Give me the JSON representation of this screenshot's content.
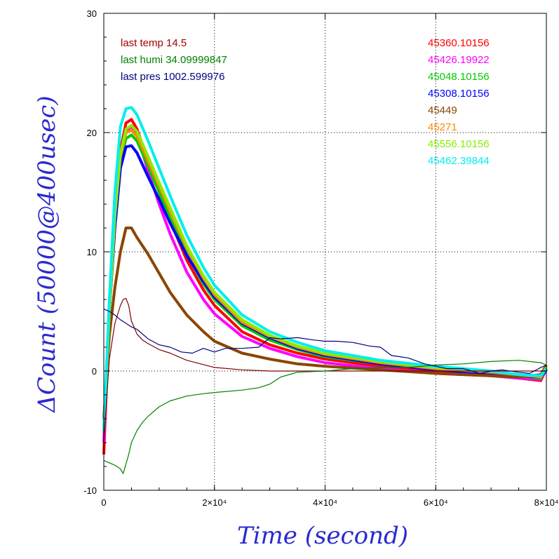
{
  "chart_data": {
    "type": "line",
    "xlabel": "Time (second)",
    "ylabel": "ΔCount (50000@400usec)",
    "xlim": [
      0,
      80000
    ],
    "ylim": [
      -10,
      30
    ],
    "grid": true,
    "x_tick_labels": [
      "0",
      "2×10⁴",
      "4×10⁴",
      "6×10⁴",
      "8×10⁴"
    ],
    "x_tick_values": [
      0,
      20000,
      40000,
      60000,
      80000
    ],
    "y_tick_labels": [
      "-10",
      "0",
      "10",
      "20",
      "30"
    ],
    "y_tick_values": [
      -10,
      0,
      10,
      20,
      30
    ],
    "env_annotations": [
      {
        "text": "last temp 14.5",
        "color": "#a00000"
      },
      {
        "text": "last humi 34.09999847",
        "color": "#008000"
      },
      {
        "text": "last pres 1002.599976",
        "color": "#000080"
      }
    ],
    "legend_position": "top-right",
    "series": [
      {
        "name": "45360.10156",
        "color": "#ff0000",
        "width": 4,
        "x": [
          0,
          1000,
          2000,
          3000,
          4000,
          5000,
          6000,
          8000,
          10000,
          12000,
          15000,
          18000,
          20000,
          25000,
          30000,
          35000,
          40000,
          50000,
          60000,
          70000,
          75000,
          79000,
          80000
        ],
        "y": [
          -7,
          5,
          13,
          18.5,
          20.8,
          21.1,
          20.3,
          17.6,
          15,
          12.6,
          9.3,
          6.8,
          5.5,
          3.3,
          2.2,
          1.5,
          1.0,
          0.4,
          0,
          -0.3,
          -0.6,
          -0.8,
          0.2
        ]
      },
      {
        "name": "45426.19922",
        "color": "#ff00ff",
        "width": 4,
        "x": [
          0,
          1000,
          2000,
          3000,
          4000,
          5000,
          6000,
          8000,
          10000,
          12000,
          15000,
          18000,
          20000,
          25000,
          30000,
          35000,
          40000,
          50000,
          60000,
          70000,
          75000,
          79000,
          80000
        ],
        "y": [
          -6,
          5,
          13,
          18,
          20.2,
          20.5,
          19.8,
          16.8,
          14,
          11.5,
          8.3,
          6.0,
          4.8,
          2.9,
          1.9,
          1.2,
          0.7,
          0.2,
          -0.2,
          -0.4,
          -0.6,
          -0.7,
          0.1
        ]
      },
      {
        "name": "45048.10156",
        "color": "#00cc00",
        "width": 4,
        "x": [
          0,
          1000,
          2000,
          3000,
          4000,
          5000,
          6000,
          8000,
          10000,
          12000,
          15000,
          18000,
          20000,
          25000,
          30000,
          35000,
          40000,
          50000,
          60000,
          70000,
          75000,
          79000,
          80000
        ],
        "y": [
          -5,
          5,
          12.5,
          17.5,
          19.5,
          19.8,
          19.3,
          17.2,
          15,
          12.8,
          9.8,
          7.3,
          6.0,
          3.8,
          2.6,
          1.8,
          1.2,
          0.6,
          0.1,
          -0.2,
          -0.4,
          -0.6,
          0.2
        ]
      },
      {
        "name": "45308.10156",
        "color": "#0000ff",
        "width": 4,
        "x": [
          0,
          1000,
          2000,
          3000,
          4000,
          5000,
          6000,
          8000,
          10000,
          12000,
          15000,
          18000,
          20000,
          25000,
          30000,
          35000,
          40000,
          50000,
          60000,
          70000,
          75000,
          79000,
          80000
        ],
        "y": [
          -5,
          5,
          12,
          17,
          18.8,
          18.9,
          18.3,
          16.3,
          14.4,
          12.4,
          9.7,
          7.5,
          6.2,
          4.0,
          2.8,
          1.9,
          1.3,
          0.6,
          0.1,
          -0.2,
          -0.4,
          -0.5,
          0.1
        ]
      },
      {
        "name": "45449",
        "color": "#8b4500",
        "width": 4,
        "x": [
          0,
          1000,
          2000,
          3000,
          4000,
          5000,
          6000,
          7000,
          8000,
          10000,
          12000,
          15000,
          18000,
          20000,
          25000,
          30000,
          35000,
          40000,
          50000,
          60000,
          70000,
          75000,
          79000,
          80000
        ],
        "y": [
          -4,
          3,
          7,
          10,
          12,
          12,
          11.2,
          10.5,
          9.8,
          8.2,
          6.6,
          4.7,
          3.3,
          2.5,
          1.5,
          1.0,
          0.6,
          0.4,
          0.1,
          -0.2,
          -0.4,
          -0.5,
          -0.3,
          0.5
        ]
      },
      {
        "name": "45271",
        "color": "#ff8800",
        "width": 4,
        "x": [
          0,
          1000,
          2000,
          3000,
          4000,
          5000,
          6000,
          8000,
          10000,
          12000,
          15000,
          18000,
          20000,
          25000,
          30000,
          35000,
          40000,
          50000,
          60000,
          70000,
          75000,
          79000,
          80000
        ],
        "y": [
          -5,
          5,
          13,
          18,
          20,
          20.2,
          19.7,
          17.6,
          15.5,
          13.4,
          10.3,
          7.8,
          6.4,
          4.1,
          2.9,
          2.0,
          1.4,
          0.7,
          0.2,
          -0.1,
          -0.3,
          -0.5,
          0.3
        ]
      },
      {
        "name": "45556.10156",
        "color": "#88ee00",
        "width": 4,
        "x": [
          0,
          1000,
          2000,
          3000,
          4000,
          5000,
          6000,
          8000,
          10000,
          12000,
          15000,
          18000,
          20000,
          25000,
          30000,
          35000,
          40000,
          50000,
          60000,
          70000,
          75000,
          79000,
          80000
        ],
        "y": [
          -5,
          5,
          13,
          18.2,
          20.3,
          20.6,
          20.1,
          18,
          15.8,
          13.7,
          10.5,
          8.0,
          6.6,
          4.3,
          3.0,
          2.1,
          1.5,
          0.8,
          0.3,
          0,
          -0.3,
          -0.4,
          0.3
        ]
      },
      {
        "name": "45462.39844",
        "color": "#00eeee",
        "width": 4,
        "x": [
          0,
          1000,
          2000,
          3000,
          4000,
          5000,
          6000,
          8000,
          10000,
          12000,
          15000,
          18000,
          20000,
          25000,
          30000,
          35000,
          40000,
          50000,
          60000,
          70000,
          75000,
          79000,
          80000
        ],
        "y": [
          -5,
          6,
          15,
          20.5,
          22,
          22.1,
          21.5,
          19.3,
          17,
          14.7,
          11.4,
          8.7,
          7.2,
          4.7,
          3.3,
          2.4,
          1.7,
          0.9,
          0.4,
          0,
          -0.3,
          -0.4,
          0.2
        ]
      },
      {
        "name": "",
        "color": "#800000",
        "width": 1.2,
        "x": [
          0,
          1000,
          2000,
          3000,
          3500,
          4000,
          4500,
          5000,
          6000,
          7000,
          8000,
          10000,
          12000,
          15000,
          20000,
          25000,
          30000,
          40000,
          60000,
          80000
        ],
        "y": [
          -6,
          1,
          4,
          5.5,
          6.0,
          6.1,
          5.5,
          4.2,
          3.1,
          2.6,
          2.3,
          1.8,
          1.5,
          0.9,
          0.3,
          0.1,
          0,
          0,
          0,
          0
        ]
      },
      {
        "name": "",
        "color": "#008000",
        "width": 1.2,
        "x": [
          0,
          1000,
          2000,
          3000,
          3500,
          4000,
          4500,
          5000,
          6000,
          7000,
          8000,
          10000,
          12000,
          15000,
          18000,
          20000,
          25000,
          28000,
          30000,
          32000,
          35000,
          40000,
          45000,
          50000,
          55000,
          60000,
          65000,
          70000,
          75000,
          79000,
          80000
        ],
        "y": [
          -7.5,
          -7.7,
          -7.9,
          -8.2,
          -8.6,
          -7.8,
          -7.0,
          -6.0,
          -5.0,
          -4.3,
          -3.8,
          -3.0,
          -2.5,
          -2.1,
          -1.9,
          -1.8,
          -1.6,
          -1.4,
          -1.1,
          -0.5,
          -0.1,
          0,
          0.2,
          0.3,
          0.3,
          0.5,
          0.6,
          0.8,
          0.9,
          0.7,
          0.5
        ]
      },
      {
        "name": "",
        "color": "#000080",
        "width": 1.2,
        "x": [
          0,
          1000,
          2000,
          3000,
          4000,
          5000,
          6000,
          8000,
          10000,
          12000,
          14000,
          16000,
          18000,
          20000,
          22000,
          25000,
          28000,
          30000,
          32000,
          35000,
          38000,
          40000,
          42000,
          45000,
          48000,
          50000,
          52000,
          55000,
          58000,
          60000,
          62000,
          65000,
          68000,
          70000,
          72000,
          75000,
          77000,
          79000,
          80000
        ],
        "y": [
          5.2,
          5.0,
          4.7,
          4.3,
          4.0,
          3.7,
          3.5,
          2.7,
          2.2,
          2.0,
          1.6,
          1.5,
          1.9,
          1.6,
          1.9,
          1.9,
          2.0,
          2.8,
          2.7,
          2.8,
          2.6,
          2.5,
          2.5,
          2.4,
          2.1,
          2.0,
          1.3,
          1.1,
          0.6,
          0.4,
          0.2,
          0.2,
          -0.2,
          0,
          0.1,
          -0.1,
          -0.2,
          0.3,
          0.5
        ]
      }
    ]
  }
}
